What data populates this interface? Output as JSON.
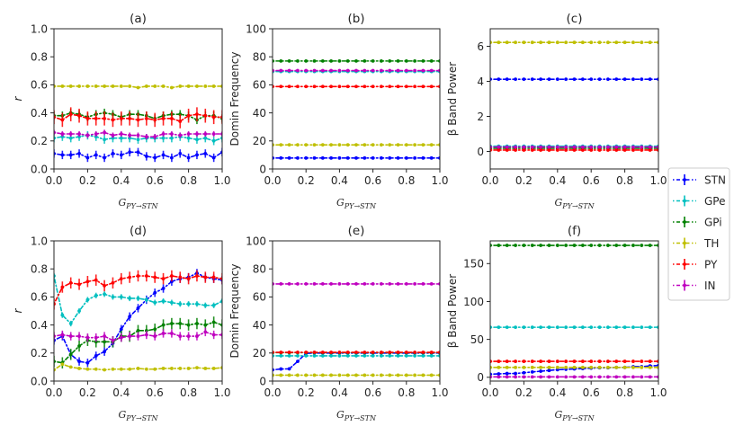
{
  "chart_data": [
    {
      "id": "a",
      "type": "line",
      "title": "(a)",
      "xlabel": "G_{PY→STN}",
      "ylabel": "r",
      "xlim": [
        0,
        1
      ],
      "ylim": [
        0,
        1
      ],
      "xticks": [
        "0.0",
        "0.2",
        "0.4",
        "0.6",
        "0.8",
        "1.0"
      ],
      "xtick_values": [
        0,
        0.2,
        0.4,
        0.6,
        0.8,
        1.0
      ],
      "yticks": [
        "0.0",
        "0.2",
        "0.4",
        "0.6",
        "0.8",
        "1.0"
      ],
      "ytick_values": [
        0,
        0.2,
        0.4,
        0.6,
        0.8,
        1.0
      ],
      "x": [
        0,
        0.05,
        0.1,
        0.15,
        0.2,
        0.25,
        0.3,
        0.35,
        0.4,
        0.45,
        0.5,
        0.55,
        0.6,
        0.65,
        0.7,
        0.75,
        0.8,
        0.85,
        0.9,
        0.95,
        1.0
      ],
      "series": [
        {
          "name": "STN",
          "values": [
            0.11,
            0.1,
            0.1,
            0.11,
            0.08,
            0.1,
            0.08,
            0.11,
            0.1,
            0.12,
            0.12,
            0.09,
            0.08,
            0.1,
            0.08,
            0.11,
            0.08,
            0.1,
            0.11,
            0.08,
            0.12
          ],
          "err": 0.03
        },
        {
          "name": "GPe",
          "values": [
            0.22,
            0.23,
            0.22,
            0.23,
            0.24,
            0.23,
            0.21,
            0.22,
            0.22,
            0.22,
            0.21,
            0.22,
            0.22,
            0.22,
            0.22,
            0.23,
            0.22,
            0.21,
            0.22,
            0.2,
            0.22
          ],
          "err": 0.03
        },
        {
          "name": "GPi",
          "values": [
            0.38,
            0.38,
            0.4,
            0.39,
            0.37,
            0.39,
            0.4,
            0.39,
            0.37,
            0.39,
            0.39,
            0.38,
            0.36,
            0.38,
            0.39,
            0.39,
            0.38,
            0.35,
            0.38,
            0.38,
            0.36
          ],
          "err": 0.03
        },
        {
          "name": "TH",
          "values": [
            0.59,
            0.59,
            0.59,
            0.59,
            0.59,
            0.59,
            0.59,
            0.59,
            0.59,
            0.59,
            0.58,
            0.59,
            0.59,
            0.59,
            0.58,
            0.59,
            0.59,
            0.59,
            0.59,
            0.59,
            0.59
          ],
          "err": 0.005
        },
        {
          "name": "PY",
          "values": [
            0.37,
            0.35,
            0.39,
            0.38,
            0.36,
            0.36,
            0.36,
            0.35,
            0.36,
            0.36,
            0.35,
            0.36,
            0.35,
            0.36,
            0.36,
            0.34,
            0.38,
            0.39,
            0.38,
            0.37,
            0.37
          ],
          "err": 0.05
        },
        {
          "name": "IN",
          "values": [
            0.26,
            0.25,
            0.25,
            0.25,
            0.24,
            0.25,
            0.26,
            0.24,
            0.25,
            0.24,
            0.24,
            0.23,
            0.23,
            0.25,
            0.25,
            0.24,
            0.25,
            0.25,
            0.25,
            0.25,
            0.25
          ],
          "err": 0.02
        }
      ]
    },
    {
      "id": "b",
      "type": "line",
      "title": "(b)",
      "xlabel": "G_{PY→STN}",
      "ylabel": "Domin Frequency",
      "xlim": [
        0,
        1
      ],
      "ylim": [
        0,
        100
      ],
      "xticks": [
        "0.0",
        "0.2",
        "0.4",
        "0.6",
        "0.8",
        "1.0"
      ],
      "xtick_values": [
        0,
        0.2,
        0.4,
        0.6,
        0.8,
        1.0
      ],
      "yticks": [
        "0",
        "20",
        "40",
        "60",
        "80",
        "100"
      ],
      "ytick_values": [
        0,
        20,
        40,
        60,
        80,
        100
      ],
      "x": [
        0,
        0.05,
        0.1,
        0.15,
        0.2,
        0.25,
        0.3,
        0.35,
        0.4,
        0.45,
        0.5,
        0.55,
        0.6,
        0.65,
        0.7,
        0.75,
        0.8,
        0.85,
        0.9,
        0.95,
        1.0
      ],
      "series": [
        {
          "name": "STN",
          "constant": 7.8,
          "err": 0
        },
        {
          "name": "GPe",
          "constant": 69.5,
          "err": 0
        },
        {
          "name": "GPi",
          "constant": 77,
          "err": 0
        },
        {
          "name": "TH",
          "constant": 17.2,
          "err": 0
        },
        {
          "name": "PY",
          "constant": 58.8,
          "err": 0
        },
        {
          "name": "IN",
          "constant": 70.2,
          "err": 0
        }
      ]
    },
    {
      "id": "c",
      "type": "line",
      "title": "(c)",
      "xlabel": "G_{PY→STN}",
      "ylabel": "β Band Power",
      "xlim": [
        0,
        1
      ],
      "ylim": [
        -1,
        7
      ],
      "xticks": [
        "0.0",
        "0.2",
        "0.4",
        "0.6",
        "0.8",
        "1.0"
      ],
      "xtick_values": [
        0,
        0.2,
        0.4,
        0.6,
        0.8,
        1.0
      ],
      "yticks": [
        "0",
        "2",
        "4",
        "6"
      ],
      "ytick_values": [
        0,
        2,
        4,
        6
      ],
      "x": [
        0,
        0.05,
        0.1,
        0.15,
        0.2,
        0.25,
        0.3,
        0.35,
        0.4,
        0.45,
        0.5,
        0.55,
        0.6,
        0.65,
        0.7,
        0.75,
        0.8,
        0.85,
        0.9,
        0.95,
        1.0
      ],
      "series": [
        {
          "name": "STN",
          "constant": 4.12,
          "err": 0
        },
        {
          "name": "GPe",
          "constant": 0.3,
          "err": 0
        },
        {
          "name": "GPi",
          "constant": 0.18,
          "err": 0
        },
        {
          "name": "TH",
          "constant": 6.22,
          "err": 0
        },
        {
          "name": "PY",
          "constant": 0.08,
          "err": 0
        },
        {
          "name": "IN",
          "constant": 0.25,
          "err": 0
        }
      ]
    },
    {
      "id": "d",
      "type": "line",
      "title": "(d)",
      "xlabel": "G_{PY→STN}",
      "ylabel": "r",
      "xlim": [
        0,
        1
      ],
      "ylim": [
        0,
        1
      ],
      "xticks": [
        "0.0",
        "0.2",
        "0.4",
        "0.6",
        "0.8",
        "1.0"
      ],
      "xtick_values": [
        0,
        0.2,
        0.4,
        0.6,
        0.8,
        1.0
      ],
      "yticks": [
        "0.0",
        "0.2",
        "0.4",
        "0.6",
        "0.8",
        "1.0"
      ],
      "ytick_values": [
        0,
        0.2,
        0.4,
        0.6,
        0.8,
        1.0
      ],
      "x": [
        0,
        0.05,
        0.1,
        0.15,
        0.2,
        0.25,
        0.3,
        0.35,
        0.4,
        0.45,
        0.5,
        0.55,
        0.6,
        0.65,
        0.7,
        0.75,
        0.8,
        0.85,
        0.9,
        0.95,
        1.0
      ],
      "series": [
        {
          "name": "STN",
          "values": [
            0.29,
            0.32,
            0.19,
            0.14,
            0.13,
            0.18,
            0.21,
            0.27,
            0.37,
            0.46,
            0.52,
            0.58,
            0.63,
            0.66,
            0.71,
            0.73,
            0.74,
            0.77,
            0.74,
            0.73,
            0.72
          ],
          "err": 0.03
        },
        {
          "name": "GPe",
          "values": [
            0.75,
            0.47,
            0.41,
            0.5,
            0.58,
            0.61,
            0.62,
            0.6,
            0.6,
            0.59,
            0.59,
            0.58,
            0.56,
            0.57,
            0.56,
            0.55,
            0.55,
            0.55,
            0.54,
            0.54,
            0.57
          ],
          "err": 0.02
        },
        {
          "name": "GPi",
          "values": [
            0.14,
            0.13,
            0.19,
            0.25,
            0.29,
            0.28,
            0.28,
            0.28,
            0.32,
            0.32,
            0.36,
            0.36,
            0.37,
            0.4,
            0.41,
            0.41,
            0.4,
            0.41,
            0.4,
            0.42,
            0.4
          ],
          "err": 0.04
        },
        {
          "name": "TH",
          "values": [
            0.08,
            0.12,
            0.1,
            0.09,
            0.085,
            0.085,
            0.08,
            0.085,
            0.085,
            0.085,
            0.09,
            0.085,
            0.085,
            0.09,
            0.09,
            0.09,
            0.09,
            0.095,
            0.09,
            0.09,
            0.095
          ],
          "err": 0.005
        },
        {
          "name": "PY",
          "values": [
            0.55,
            0.67,
            0.7,
            0.69,
            0.71,
            0.72,
            0.68,
            0.7,
            0.73,
            0.74,
            0.75,
            0.75,
            0.74,
            0.73,
            0.75,
            0.74,
            0.73,
            0.75,
            0.74,
            0.74,
            0.73
          ],
          "err": 0.04
        },
        {
          "name": "IN",
          "values": [
            0.32,
            0.33,
            0.32,
            0.32,
            0.31,
            0.31,
            0.32,
            0.29,
            0.31,
            0.32,
            0.32,
            0.33,
            0.32,
            0.34,
            0.34,
            0.32,
            0.32,
            0.32,
            0.35,
            0.33,
            0.33
          ],
          "err": 0.03
        }
      ]
    },
    {
      "id": "e",
      "type": "line",
      "title": "(e)",
      "xlabel": "G_{PY→STN}",
      "ylabel": "Domin Frequency",
      "xlim": [
        0,
        1
      ],
      "ylim": [
        0,
        100
      ],
      "xticks": [
        "0.0",
        "0.2",
        "0.4",
        "0.6",
        "0.8",
        "1.0"
      ],
      "xtick_values": [
        0,
        0.2,
        0.4,
        0.6,
        0.8,
        1.0
      ],
      "yticks": [
        "0",
        "20",
        "40",
        "60",
        "80",
        "100"
      ],
      "ytick_values": [
        0,
        20,
        40,
        60,
        80,
        100
      ],
      "x": [
        0,
        0.05,
        0.1,
        0.15,
        0.2,
        0.25,
        0.3,
        0.35,
        0.4,
        0.45,
        0.5,
        0.55,
        0.6,
        0.65,
        0.7,
        0.75,
        0.8,
        0.85,
        0.9,
        0.95,
        1.0
      ],
      "series": [
        {
          "name": "STN",
          "values": [
            8,
            8.6,
            8.7,
            14,
            19.8,
            20,
            20,
            20,
            20,
            20,
            20,
            20,
            20,
            20,
            20,
            20,
            20,
            20,
            20,
            20,
            20
          ],
          "err": 0.6
        },
        {
          "name": "GPe",
          "constant": 18,
          "err": 0
        },
        {
          "name": "GPi",
          "constant": 20.3,
          "err": 0
        },
        {
          "name": "TH",
          "constant": 4.2,
          "err": 0
        },
        {
          "name": "PY",
          "constant": 20.5,
          "err": 0
        },
        {
          "name": "IN",
          "constant": 69.3,
          "err": 0
        }
      ]
    },
    {
      "id": "f",
      "type": "line",
      "title": "(f)",
      "xlabel": "G_{PY→STN}",
      "ylabel": "β Band Power",
      "xlim": [
        0,
        1
      ],
      "ylim": [
        -5,
        180
      ],
      "xticks": [
        "0.0",
        "0.2",
        "0.4",
        "0.6",
        "0.8",
        "1.0"
      ],
      "xtick_values": [
        0,
        0.2,
        0.4,
        0.6,
        0.8,
        1.0
      ],
      "yticks": [
        "0",
        "50",
        "100",
        "150"
      ],
      "ytick_values": [
        0,
        50,
        100,
        150
      ],
      "x": [
        0,
        0.05,
        0.1,
        0.15,
        0.2,
        0.25,
        0.3,
        0.35,
        0.4,
        0.45,
        0.5,
        0.55,
        0.6,
        0.65,
        0.7,
        0.75,
        0.8,
        0.85,
        0.9,
        0.95,
        1.0
      ],
      "series": [
        {
          "name": "STN",
          "values": [
            4,
            4.5,
            5,
            5,
            6,
            7,
            8,
            9,
            10,
            10.5,
            11,
            11.5,
            12,
            12.5,
            12.5,
            13,
            13,
            14,
            14,
            15,
            15.5
          ],
          "err": 0
        },
        {
          "name": "GPe",
          "constant": 66,
          "err": 0
        },
        {
          "name": "GPi",
          "constant": 174,
          "err": 0
        },
        {
          "name": "TH",
          "constant": 13,
          "err": 0
        },
        {
          "name": "PY",
          "constant": 21,
          "err": 0
        },
        {
          "name": "IN",
          "constant": 0.5,
          "err": 0
        }
      ]
    }
  ],
  "legend": {
    "placement": "right-middle",
    "entries": [
      {
        "name": "STN",
        "color": "#0000ff"
      },
      {
        "name": "GPe",
        "color": "#00bfbf"
      },
      {
        "name": "GPi",
        "color": "#008000"
      },
      {
        "name": "TH",
        "color": "#bfbf00"
      },
      {
        "name": "PY",
        "color": "#ff0000"
      },
      {
        "name": "IN",
        "color": "#bf00bf"
      }
    ]
  },
  "xlabel_parts": {
    "main": "G",
    "sub": "PY→STN"
  }
}
